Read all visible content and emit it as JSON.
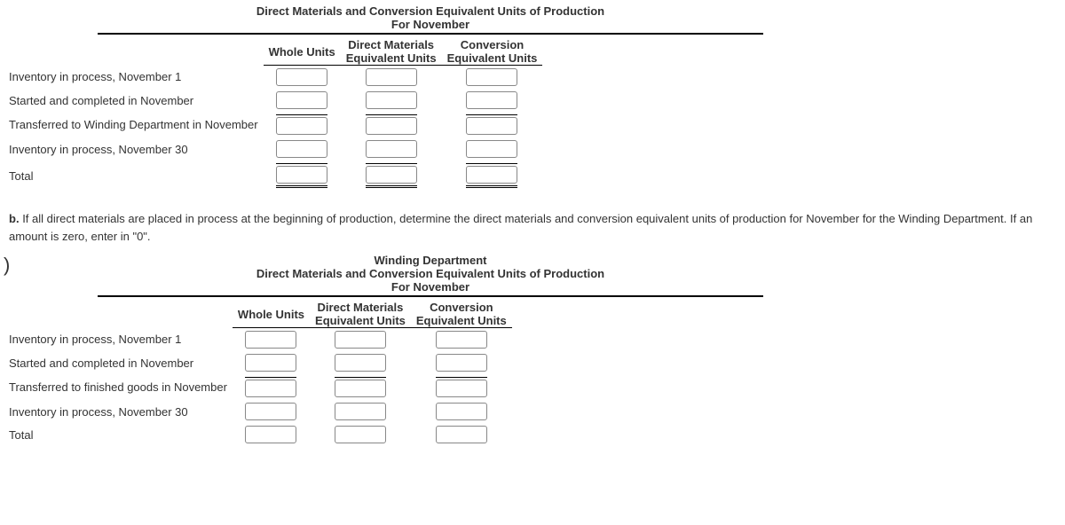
{
  "table1": {
    "title_line1": "Direct Materials and Conversion Equivalent Units of Production",
    "title_line2": "For November",
    "col1": "Whole Units",
    "col2a": "Direct Materials",
    "col2b": "Equivalent Units",
    "col3a": "Conversion",
    "col3b": "Equivalent Units",
    "rows": {
      "r1": "Inventory in process, November 1",
      "r2": "Started and completed in November",
      "r3": "Transferred to Winding Department in November",
      "r4": "Inventory in process, November 30",
      "r5": "Total"
    }
  },
  "partb": {
    "prefix": "b.",
    "text": "If all direct materials are placed in process at the beginning of production, determine the direct materials and conversion equivalent units of production for November for the Winding Department. If an amount is zero, enter in \"0\"."
  },
  "table2": {
    "title_line0": "Winding Department",
    "title_line1": "Direct Materials and Conversion Equivalent Units of Production",
    "title_line2": "For November",
    "col1": "Whole Units",
    "col2a": "Direct Materials",
    "col2b": "Equivalent Units",
    "col3a": "Conversion",
    "col3b": "Equivalent Units",
    "rows": {
      "r1": "Inventory in process, November 1",
      "r2": "Started and completed in November",
      "r3": "Transferred to finished goods in November",
      "r4": "Inventory in process, November 30",
      "r5": "Total"
    }
  }
}
